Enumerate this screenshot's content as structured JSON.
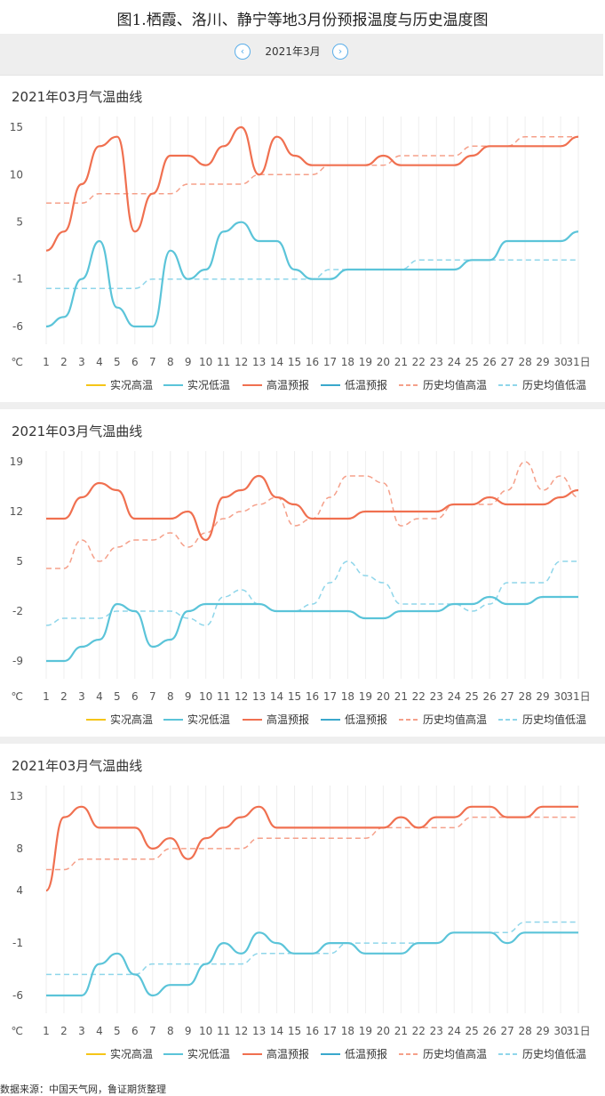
{
  "figure_title": "图1.栖霞、洛川、静宁等地3月份预报温度与历史温度图",
  "month_nav": {
    "label": "2021年3月",
    "prev_icon": "chevron-left-icon",
    "next_icon": "chevron-right-icon"
  },
  "source": "数据来源：中国天气网，鲁证期货整理",
  "legend": [
    {
      "name": "实况高温",
      "color": "#f5c518",
      "dash": false
    },
    {
      "name": "实况低温",
      "color": "#5bc4d9",
      "dash": false
    },
    {
      "name": "高温预报",
      "color": "#f07050",
      "dash": false
    },
    {
      "name": "低温预报",
      "color": "#3aa8cc",
      "dash": false
    },
    {
      "name": "历史均值高温",
      "color": "#f5a08a",
      "dash": true
    },
    {
      "name": "历史均值低温",
      "color": "#8fd6ea",
      "dash": true
    }
  ],
  "x_unit": "℃",
  "day_suffix": "日",
  "chart_data": [
    {
      "type": "line",
      "title": "2021年03月气温曲线",
      "categories": [
        1,
        2,
        3,
        4,
        5,
        6,
        7,
        8,
        9,
        10,
        11,
        12,
        13,
        14,
        15,
        16,
        17,
        18,
        19,
        20,
        21,
        22,
        23,
        24,
        25,
        26,
        27,
        28,
        29,
        30,
        31
      ],
      "yticks": [
        15,
        10,
        5,
        -1,
        -6
      ],
      "ylim": [
        -6,
        15
      ],
      "series": [
        {
          "name": "高温预报",
          "values": [
            2,
            4,
            9,
            13,
            14,
            4,
            8,
            12,
            12,
            11,
            13,
            15,
            10,
            14,
            12,
            11,
            11,
            11,
            11,
            12,
            11,
            11,
            11,
            11,
            12,
            13,
            13,
            13,
            13,
            13,
            14
          ]
        },
        {
          "name": "实况低温",
          "values": [
            -6,
            -5,
            -1,
            3,
            -4,
            -6,
            -6,
            2,
            -1,
            0,
            4,
            5,
            3,
            3,
            0,
            -1,
            -1,
            0,
            0,
            0,
            0,
            0,
            0,
            0,
            1,
            1,
            3,
            3,
            3,
            3,
            4
          ]
        },
        {
          "name": "历史均值高温",
          "values": [
            7,
            7,
            7,
            8,
            8,
            8,
            8,
            8,
            9,
            9,
            9,
            9,
            10,
            10,
            10,
            10,
            11,
            11,
            11,
            11,
            12,
            12,
            12,
            12,
            13,
            13,
            13,
            14,
            14,
            14,
            14
          ]
        },
        {
          "name": "历史均值低温",
          "values": [
            -2,
            -2,
            -2,
            -2,
            -2,
            -2,
            -1,
            -1,
            -1,
            -1,
            -1,
            -1,
            -1,
            -1,
            -1,
            -1,
            0,
            0,
            0,
            0,
            0,
            1,
            1,
            1,
            1,
            1,
            1,
            1,
            1,
            1,
            1
          ]
        }
      ]
    },
    {
      "type": "line",
      "title": "2021年03月气温曲线",
      "categories": [
        1,
        2,
        3,
        4,
        5,
        6,
        7,
        8,
        9,
        10,
        11,
        12,
        13,
        14,
        15,
        16,
        17,
        18,
        19,
        20,
        21,
        22,
        23,
        24,
        25,
        26,
        27,
        28,
        29,
        30,
        31
      ],
      "yticks": [
        19,
        12,
        5,
        -2,
        -9
      ],
      "ylim": [
        -9,
        19
      ],
      "series": [
        {
          "name": "高温预报",
          "values": [
            11,
            11,
            14,
            16,
            15,
            11,
            11,
            11,
            12,
            8,
            14,
            15,
            17,
            14,
            13,
            11,
            11,
            11,
            12,
            12,
            12,
            12,
            12,
            13,
            13,
            14,
            13,
            13,
            13,
            14,
            15
          ]
        },
        {
          "name": "实况低温",
          "values": [
            -9,
            -9,
            -7,
            -6,
            -1,
            -2,
            -7,
            -6,
            -2,
            -1,
            -1,
            -1,
            -1,
            -2,
            -2,
            -2,
            -2,
            -2,
            -3,
            -3,
            -2,
            -2,
            -2,
            -1,
            -1,
            0,
            -1,
            -1,
            0,
            0,
            0
          ]
        },
        {
          "name": "历史均值高温",
          "values": [
            4,
            4,
            8,
            5,
            7,
            8,
            8,
            9,
            7,
            9,
            11,
            12,
            13,
            14,
            10,
            11,
            14,
            17,
            17,
            16,
            10,
            11,
            11,
            13,
            13,
            13,
            15,
            19,
            15,
            17,
            14
          ]
        },
        {
          "name": "历史均值低温",
          "values": [
            -4,
            -3,
            -3,
            -3,
            -2,
            -2,
            -2,
            -2,
            -3,
            -4,
            0,
            1,
            -1,
            -2,
            -2,
            -1,
            2,
            5,
            3,
            2,
            -1,
            -1,
            -1,
            -1,
            -2,
            -1,
            2,
            2,
            2,
            5,
            5
          ]
        }
      ]
    },
    {
      "type": "line",
      "title": "2021年03月气温曲线",
      "categories": [
        1,
        2,
        3,
        4,
        5,
        6,
        7,
        8,
        9,
        10,
        11,
        12,
        13,
        14,
        15,
        16,
        17,
        18,
        19,
        20,
        21,
        22,
        23,
        24,
        25,
        26,
        27,
        28,
        29,
        30,
        31
      ],
      "yticks": [
        13,
        8,
        4,
        -1,
        -6
      ],
      "ylim": [
        -6,
        13
      ],
      "series": [
        {
          "name": "高温预报",
          "values": [
            4,
            11,
            12,
            10,
            10,
            10,
            8,
            9,
            7,
            9,
            10,
            11,
            12,
            10,
            10,
            10,
            10,
            10,
            10,
            10,
            11,
            10,
            11,
            11,
            12,
            12,
            11,
            11,
            12,
            12,
            12
          ]
        },
        {
          "name": "实况低温",
          "values": [
            -6,
            -6,
            -6,
            -3,
            -2,
            -4,
            -6,
            -5,
            -5,
            -3,
            -1,
            -2,
            0,
            -1,
            -2,
            -2,
            -1,
            -1,
            -2,
            -2,
            -2,
            -1,
            -1,
            0,
            0,
            0,
            -1,
            0,
            0,
            0,
            0
          ]
        },
        {
          "name": "历史均值高温",
          "values": [
            6,
            6,
            7,
            7,
            7,
            7,
            7,
            8,
            8,
            8,
            8,
            8,
            9,
            9,
            9,
            9,
            9,
            9,
            9,
            10,
            10,
            10,
            10,
            10,
            11,
            11,
            11,
            11,
            11,
            11,
            11
          ]
        },
        {
          "name": "历史均值低温",
          "values": [
            -4,
            -4,
            -4,
            -4,
            -4,
            -4,
            -3,
            -3,
            -3,
            -3,
            -3,
            -3,
            -2,
            -2,
            -2,
            -2,
            -2,
            -1,
            -1,
            -1,
            -1,
            -1,
            -1,
            0,
            0,
            0,
            0,
            1,
            1,
            1,
            1
          ]
        }
      ]
    }
  ]
}
